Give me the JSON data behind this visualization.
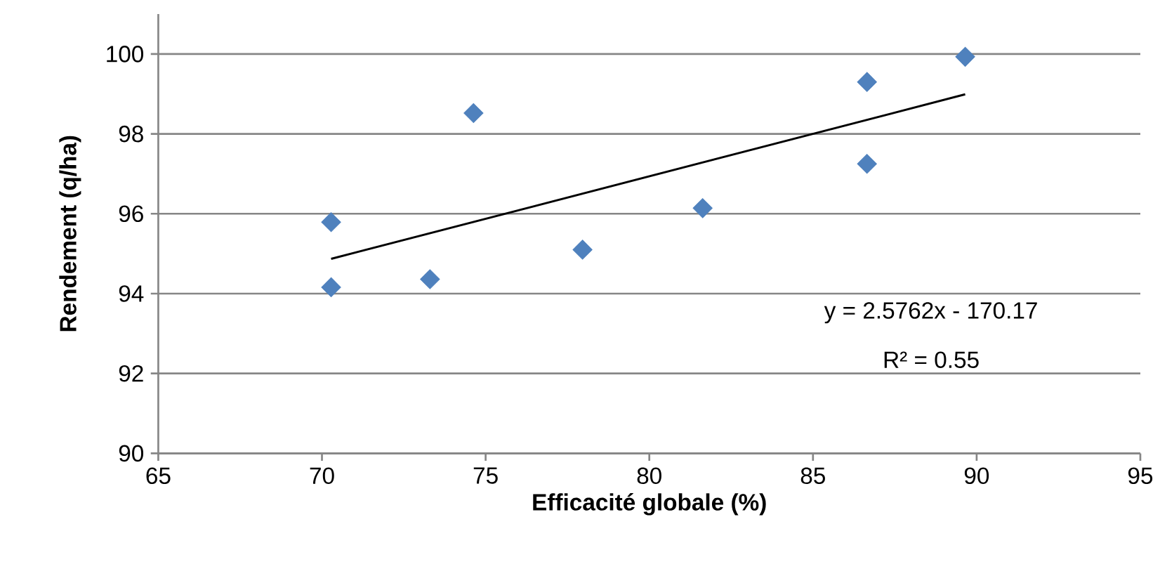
{
  "chart_data": {
    "type": "scatter",
    "xlabel": "Efficacité globale (%)",
    "ylabel": "Rendement (q/ha)",
    "annotations": [
      "y = 2.5762x - 170.17",
      "R² = 0.55"
    ],
    "series": [
      {
        "color": "#4f81bd",
        "marker": "diamond",
        "x": [
          70.28,
          70.28,
          73.3,
          74.63,
          77.96,
          81.63,
          86.65,
          86.65,
          89.65
        ],
        "values": [
          95.79,
          94.16,
          94.36,
          98.52,
          95.1,
          96.14,
          99.3,
          97.25,
          99.93
        ]
      },
      {
        "type": "line",
        "color": "#000000",
        "marker": "none",
        "x": [
          70.28,
          89.65
        ],
        "values": [
          94.87,
          98.99
        ]
      }
    ],
    "xlim": [
      65,
      95
    ],
    "xticks": [
      65,
      70,
      75,
      80,
      85,
      90,
      95
    ],
    "ylim": [
      90,
      101
    ],
    "yticks": [
      90,
      92,
      94,
      96,
      98,
      100
    ],
    "grid": "y"
  }
}
